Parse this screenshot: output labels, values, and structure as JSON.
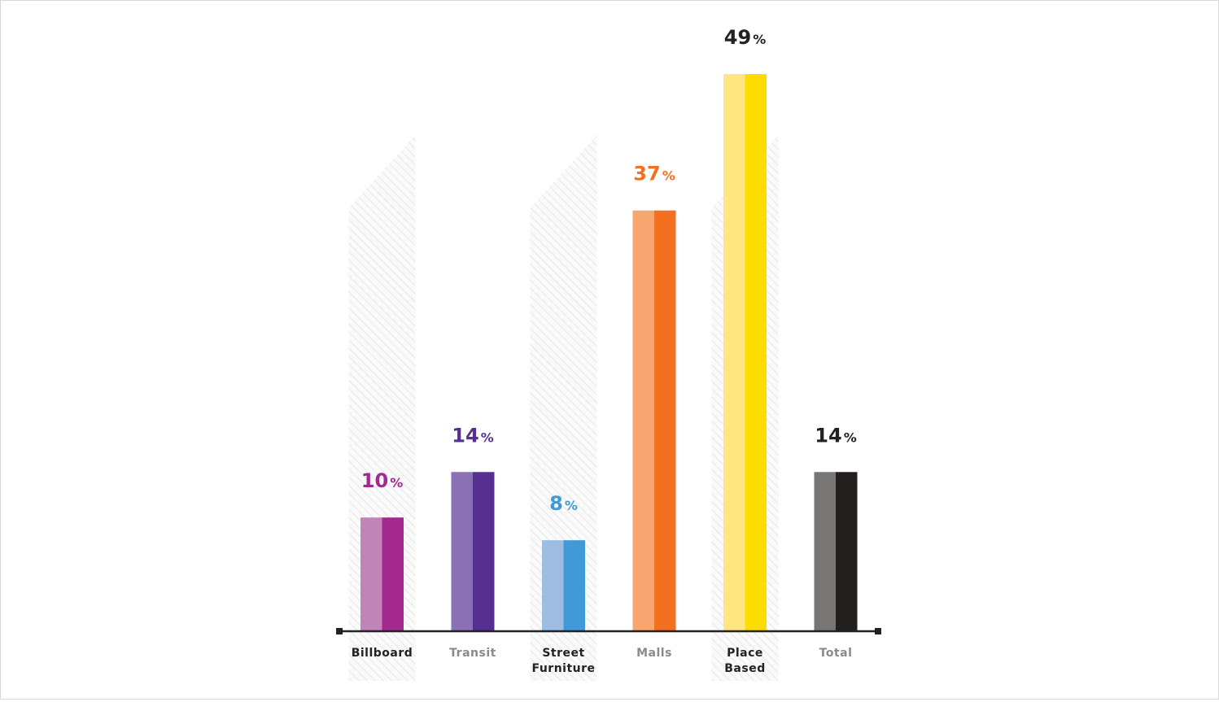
{
  "chart_data": {
    "type": "bar",
    "title": "",
    "xlabel": "",
    "ylabel": "",
    "ylim": [
      0,
      50
    ],
    "grid": false,
    "legend": "none",
    "value_suffix": "%",
    "categories": [
      {
        "name": "Billboard",
        "lines": [
          "Billboard"
        ],
        "value": 10,
        "label": "10",
        "highlighted": true,
        "color_light": "#c084b8",
        "color_dark": "#a3298f",
        "label_color": "#a3298f",
        "category_color": "#222222"
      },
      {
        "name": "Transit",
        "lines": [
          "Transit"
        ],
        "value": 14,
        "label": "14",
        "highlighted": false,
        "color_light": "#8a70b4",
        "color_dark": "#563090",
        "label_color": "#563090",
        "category_color": "#8a8a8a"
      },
      {
        "name": "Street Furniture",
        "lines": [
          "Street",
          "Furniture"
        ],
        "value": 8,
        "label": "8",
        "highlighted": true,
        "color_light": "#9dbde2",
        "color_dark": "#4199d6",
        "label_color": "#4199d6",
        "category_color": "#222222"
      },
      {
        "name": "Malls",
        "lines": [
          "Malls"
        ],
        "value": 37,
        "label": "37",
        "highlighted": false,
        "color_light": "#f7a66f",
        "color_dark": "#f37021",
        "label_color": "#f37021",
        "category_color": "#8a8a8a"
      },
      {
        "name": "Place Based",
        "lines": [
          "Place",
          "Based"
        ],
        "value": 49,
        "label": "49",
        "highlighted": true,
        "color_light": "#ffe680",
        "color_dark": "#ffdc00",
        "label_color": "#222222",
        "category_color": "#222222"
      },
      {
        "name": "Total",
        "lines": [
          "Total"
        ],
        "value": 14,
        "label": "14",
        "highlighted": false,
        "color_light": "#777675",
        "color_dark": "#231f1f",
        "label_color": "#222222",
        "category_color": "#8a8a8a"
      }
    ]
  }
}
